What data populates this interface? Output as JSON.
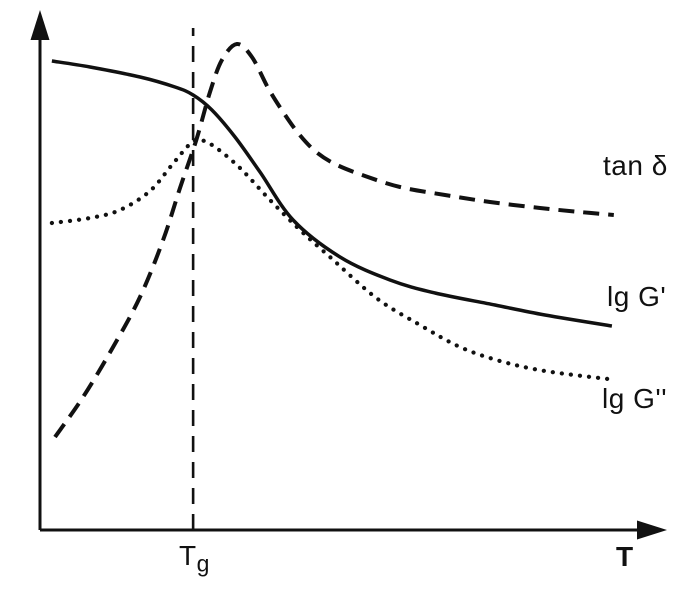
{
  "figure": {
    "background": "#ffffff",
    "ink_color": "#111111"
  },
  "chart_data": {
    "type": "line",
    "title": "",
    "xlabel": "T",
    "ylabel": "",
    "grid": false,
    "axis_numeric_labels": false,
    "legend_position": "inline labels at right ends of curves",
    "x_units": "temperature, arbitrary schematic units 0-100",
    "y_units": "arbitrary schematic units 0-100 (log modulus / loss factor, qualitative)",
    "xlim": [
      0,
      100
    ],
    "ylim": [
      0,
      100
    ],
    "series": [
      {
        "name": "storage-modulus",
        "label": "lg G'",
        "line_style": "solid",
        "color": "#111111",
        "width": 3.5,
        "points": [
          [
            1.9,
            93.8
          ],
          [
            8,
            92.6
          ],
          [
            16,
            90.6
          ],
          [
            21.6,
            88.6
          ],
          [
            24.5,
            87
          ],
          [
            27.5,
            84
          ],
          [
            31.2,
            78.6
          ],
          [
            35.2,
            71.6
          ],
          [
            40.5,
            62
          ],
          [
            48,
            54.6
          ],
          [
            56,
            50
          ],
          [
            63.2,
            47.4
          ],
          [
            72.8,
            45
          ],
          [
            80.8,
            43
          ],
          [
            91.5,
            40.8
          ]
        ]
      },
      {
        "name": "loss-modulus",
        "label": "lg G''",
        "line_style": "dotted",
        "color": "#111111",
        "width": 4.2,
        "points": [
          [
            1.9,
            61.4
          ],
          [
            8,
            62.4
          ],
          [
            12.8,
            64
          ],
          [
            17.6,
            67.8
          ],
          [
            21.1,
            73
          ],
          [
            24,
            77.2
          ],
          [
            25.6,
            78
          ],
          [
            28,
            76.6
          ],
          [
            32,
            72.4
          ],
          [
            36.8,
            66
          ],
          [
            41.6,
            60
          ],
          [
            46.4,
            54.6
          ],
          [
            53.8,
            46.4
          ],
          [
            60.8,
            41
          ],
          [
            67.2,
            36.6
          ],
          [
            73.6,
            33.8
          ],
          [
            80.8,
            31.8
          ],
          [
            90.9,
            30.2
          ]
        ]
      },
      {
        "name": "loss-factor",
        "label": "tan δ",
        "line_style": "dashed",
        "color": "#111111",
        "width": 4,
        "points": [
          [
            2.4,
            18.6
          ],
          [
            6.9,
            26.6
          ],
          [
            11.7,
            36.6
          ],
          [
            16,
            46.6
          ],
          [
            19.7,
            58
          ],
          [
            22.4,
            68.4
          ],
          [
            25,
            78
          ],
          [
            27.2,
            87.6
          ],
          [
            29.1,
            94
          ],
          [
            31.5,
            97.2
          ],
          [
            33.9,
            94.6
          ],
          [
            36.5,
            88.4
          ],
          [
            38.9,
            83.6
          ],
          [
            41.3,
            79.4
          ],
          [
            44,
            75.8
          ],
          [
            47.2,
            73.2
          ],
          [
            52,
            70.8
          ],
          [
            57.6,
            68.6
          ],
          [
            64.8,
            67
          ],
          [
            72,
            65.6
          ],
          [
            80,
            64.4
          ],
          [
            86.4,
            63.6
          ],
          [
            91.8,
            63
          ]
        ]
      }
    ],
    "annotations": [
      {
        "type": "vline",
        "name": "glass-transition-marker",
        "x": 24.5,
        "line_style": "dashed",
        "label_main": "T",
        "label_sub": "g"
      }
    ]
  }
}
